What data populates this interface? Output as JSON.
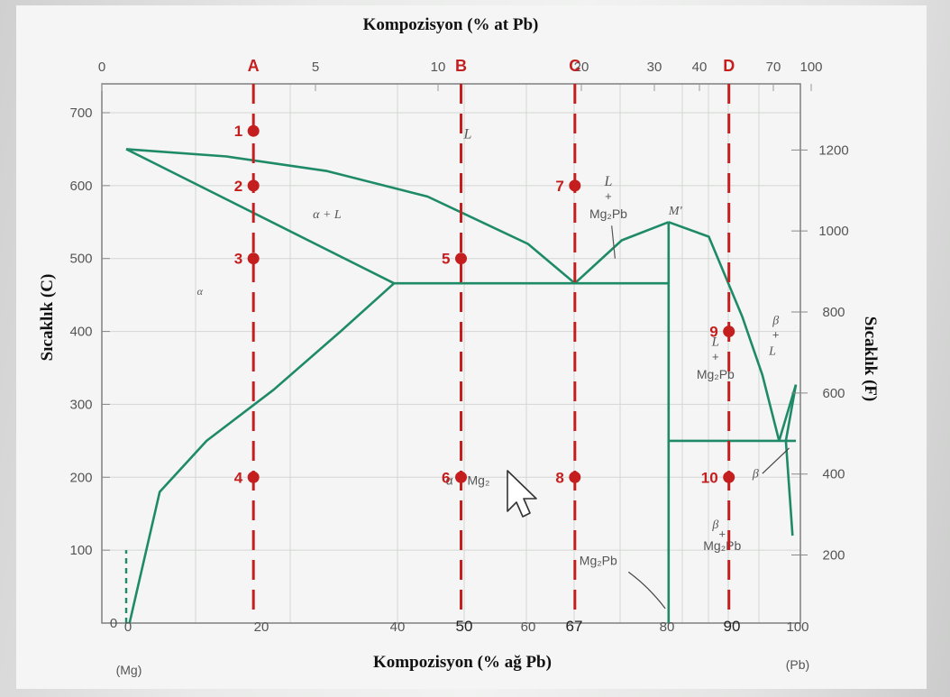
{
  "chart_data": {
    "type": "line",
    "title_top": "Kompozisyon (% at Pb)",
    "xlabel": "Kompozisyon (% ağ Pb)",
    "ylabel_left": "Sıcaklık (C)",
    "ylabel_right": "Sıcaklık (F)",
    "xlim": [
      0,
      100
    ],
    "ylim": [
      0,
      700
    ],
    "x_ticks_bottom": [
      "0",
      "20",
      "40",
      "50",
      "60",
      "67",
      "80",
      "90",
      "100"
    ],
    "x_ticks_top": [
      "0",
      "5",
      "10",
      "20",
      "30",
      "40",
      "70",
      "100"
    ],
    "y_ticks_left": [
      "0",
      "100",
      "200",
      "300",
      "400",
      "500",
      "600",
      "700"
    ],
    "y_ticks_right": [
      "200",
      "400",
      "600",
      "800",
      "1000",
      "1200"
    ],
    "end_labels": {
      "left": "(Mg)",
      "right": "(Pb)"
    },
    "region_labels": [
      "L",
      "α + L",
      "α",
      "L",
      "+",
      "Mg₂Pb",
      "M'",
      "β",
      "+",
      "L",
      "L",
      "+",
      "Mg₂Pb",
      "β",
      "α + Mg₂",
      "β",
      "+",
      "Mg₂Pb",
      "Mg₂Pb"
    ],
    "composition_lines": [
      {
        "label": "A",
        "x": 19
      },
      {
        "label": "B",
        "x": 50
      },
      {
        "label": "C",
        "x": 67
      },
      {
        "label": "D",
        "x": 90
      }
    ],
    "points": [
      {
        "label": "1",
        "x": 19,
        "y": 675
      },
      {
        "label": "2",
        "x": 19,
        "y": 600
      },
      {
        "label": "3",
        "x": 19,
        "y": 500
      },
      {
        "label": "4",
        "x": 19,
        "y": 200
      },
      {
        "label": "5",
        "x": 50,
        "y": 500
      },
      {
        "label": "6",
        "x": 50,
        "y": 200
      },
      {
        "label": "7",
        "x": 67,
        "y": 600
      },
      {
        "label": "8",
        "x": 67,
        "y": 200
      },
      {
        "label": "9",
        "x": 90,
        "y": 400
      },
      {
        "label": "10",
        "x": 90,
        "y": 200
      }
    ],
    "phase_boundaries": [
      {
        "name": "liquidus-mg",
        "x": [
          0,
          15,
          30,
          45,
          60,
          67
        ],
        "y": [
          650,
          640,
          620,
          585,
          520,
          466
        ]
      },
      {
        "name": "solidus-alpha",
        "x": [
          0,
          40
        ],
        "y": [
          650,
          466
        ]
      },
      {
        "name": "solvus-alpha",
        "x": [
          0.5,
          5,
          12,
          22,
          32,
          40
        ],
        "y": [
          0,
          180,
          250,
          320,
          400,
          466
        ]
      },
      {
        "name": "eutectic-1",
        "x": [
          40,
          81
        ],
        "y": [
          466,
          466
        ]
      },
      {
        "name": "liquidus-mg2pb-left",
        "x": [
          67,
          74,
          81
        ],
        "y": [
          466,
          525,
          550
        ]
      },
      {
        "name": "liquidus-mg2pb-right",
        "x": [
          81,
          87,
          92,
          95,
          97.5
        ],
        "y": [
          550,
          530,
          420,
          340,
          250
        ]
      },
      {
        "name": "mg2pb-compound",
        "x": [
          81,
          81
        ],
        "y": [
          0,
          550
        ]
      },
      {
        "name": "eutectic-2",
        "x": [
          81,
          100
        ],
        "y": [
          250,
          250
        ]
      },
      {
        "name": "liquidus-pb",
        "x": [
          97.5,
          100
        ],
        "y": [
          250,
          327
        ]
      },
      {
        "name": "solidus-beta",
        "x": [
          98.5,
          100
        ],
        "y": [
          250,
          327
        ]
      },
      {
        "name": "solvus-beta",
        "x": [
          98.5,
          99.5
        ],
        "y": [
          250,
          120
        ]
      }
    ],
    "grid": true
  }
}
